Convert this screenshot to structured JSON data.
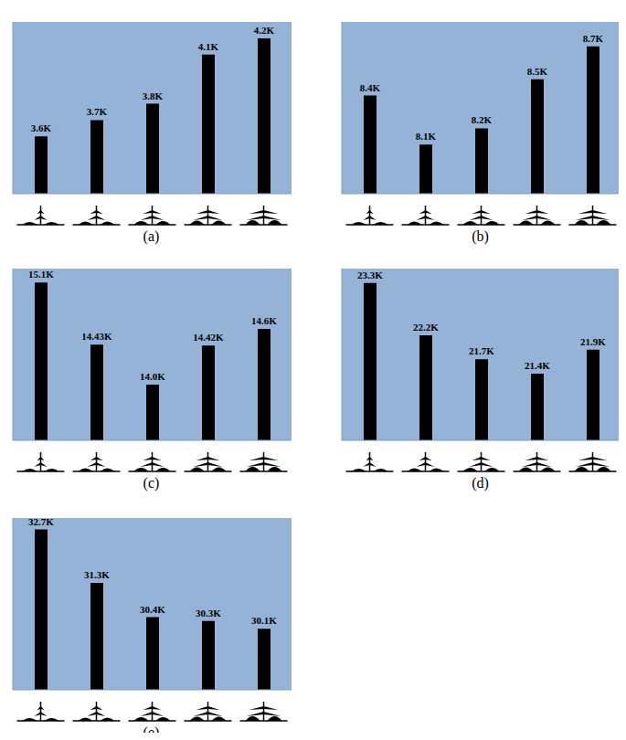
{
  "chart_data": [
    {
      "type": "bar",
      "title": "(a)",
      "categories": [
        null,
        null,
        null,
        null,
        null
      ],
      "values": [
        3600,
        3700,
        3800,
        4100,
        4200
      ],
      "value_labels": [
        "3.6K",
        "3.7K",
        "3.8K",
        "4.1K",
        "4.2K"
      ],
      "color": "#000000",
      "ylim": [
        3250,
        4300
      ],
      "data_labels": true,
      "tick_labels": false,
      "grid": false
    },
    {
      "type": "bar",
      "title": "(b)",
      "categories": [
        null,
        null,
        null,
        null,
        null
      ],
      "values": [
        8400,
        8100,
        8200,
        8500,
        8700
      ],
      "value_labels": [
        "8.4K",
        "8.1K",
        "8.2K",
        "8.5K",
        "8.7K"
      ],
      "color": "#000000",
      "ylim": [
        7800,
        8850
      ],
      "data_labels": true,
      "tick_labels": false,
      "grid": false
    },
    {
      "type": "bar",
      "title": "(c)",
      "categories": [
        null,
        null,
        null,
        null,
        null
      ],
      "values": [
        15100,
        14430,
        14000,
        14420,
        14600
      ],
      "value_labels": [
        "15.1K",
        "14.43K",
        "14.0K",
        "14.42K",
        "14.6K"
      ],
      "color": "#000000",
      "ylim": [
        13400,
        15250
      ],
      "data_labels": true,
      "tick_labels": false,
      "grid": false
    },
    {
      "type": "bar",
      "title": "(d)",
      "categories": [
        null,
        null,
        null,
        null,
        null
      ],
      "values": [
        23300,
        22200,
        21700,
        21400,
        21900
      ],
      "value_labels": [
        "23.3K",
        "22.2K",
        "21.7K",
        "21.4K",
        "21.9K"
      ],
      "color": "#000000",
      "ylim": [
        20000,
        23600
      ],
      "data_labels": true,
      "tick_labels": false,
      "grid": false
    },
    {
      "type": "bar",
      "title": "(e)",
      "categories": [
        null,
        null,
        null,
        null,
        null
      ],
      "values": [
        32700,
        31300,
        30400,
        30300,
        30100
      ],
      "value_labels": [
        "32.7K",
        "31.3K",
        "30.4K",
        "30.3K",
        "30.1K"
      ],
      "color": "#000000",
      "ylim": [
        28500,
        33000
      ],
      "data_labels": true,
      "tick_labels": false,
      "grid": false
    }
  ]
}
